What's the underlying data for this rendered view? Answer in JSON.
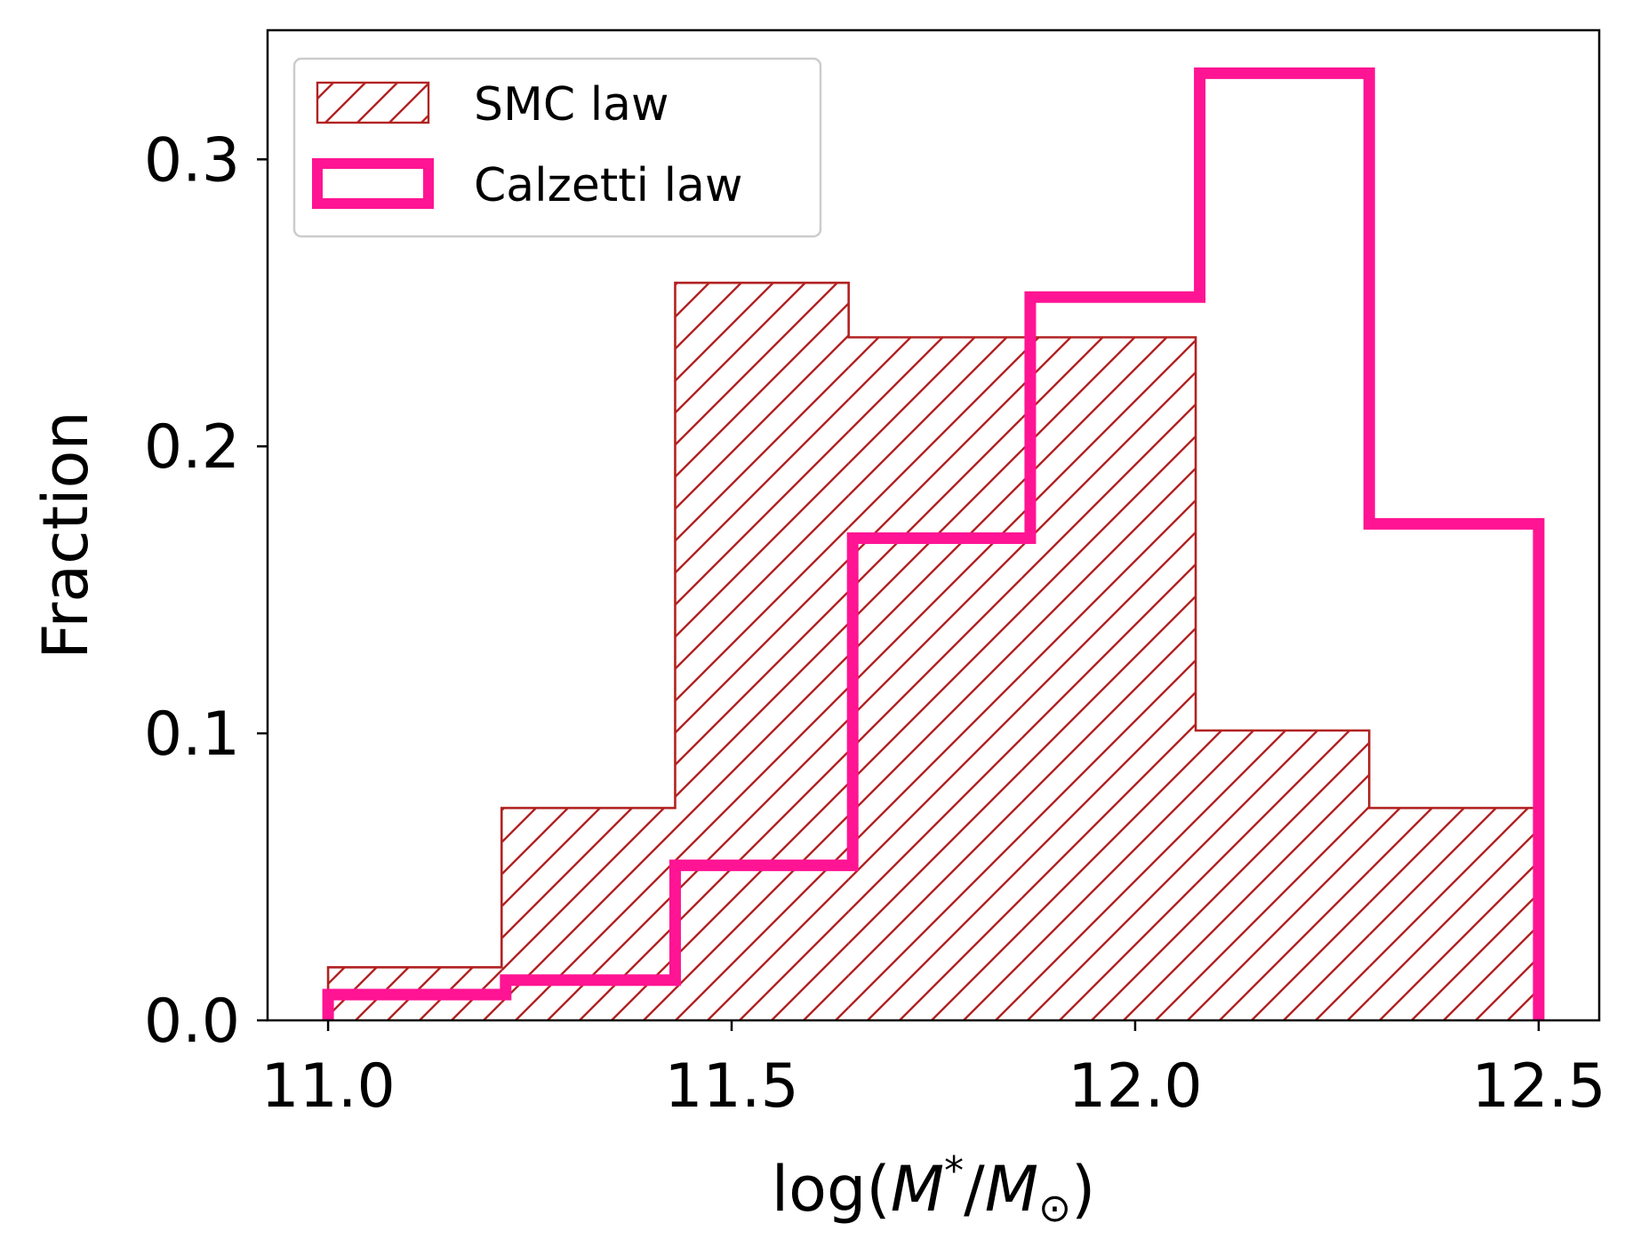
{
  "chart_data": {
    "type": "histogram",
    "xlabel": {
      "prefix": "log(",
      "M": "M",
      "star": "*",
      "slash": "/",
      "M2": "M",
      "sun": "⊙",
      "suffix": ")"
    },
    "ylabel": "Fraction",
    "xlim": [
      10.925,
      12.575
    ],
    "ylim": [
      0.0,
      0.345
    ],
    "xticks": [
      11.0,
      11.5,
      12.0,
      12.5
    ],
    "xtick_labels": [
      "11.0",
      "11.5",
      "12.0",
      "12.5"
    ],
    "yticks": [
      0.0,
      0.1,
      0.2,
      0.3
    ],
    "ytick_labels": [
      "0.0",
      "0.1",
      "0.2",
      "0.3"
    ],
    "grid": false,
    "legend_position": "top-left",
    "series": [
      {
        "name": "SMC law",
        "style": "hatched",
        "color": "#b22222",
        "bin_edges": [
          11.0,
          11.215,
          11.43,
          11.645,
          11.86,
          12.075,
          12.29,
          12.505
        ],
        "values": [
          0.0185,
          0.074,
          0.257,
          0.238,
          0.238,
          0.101,
          0.074
        ]
      },
      {
        "name": "Calzetti law",
        "style": "step",
        "color": "#ff1493",
        "bin_edges": [
          11.0,
          11.22,
          11.43,
          11.65,
          11.87,
          12.08,
          12.29,
          12.5
        ],
        "values": [
          0.009,
          0.014,
          0.054,
          0.168,
          0.252,
          0.33,
          0.173
        ]
      }
    ]
  }
}
